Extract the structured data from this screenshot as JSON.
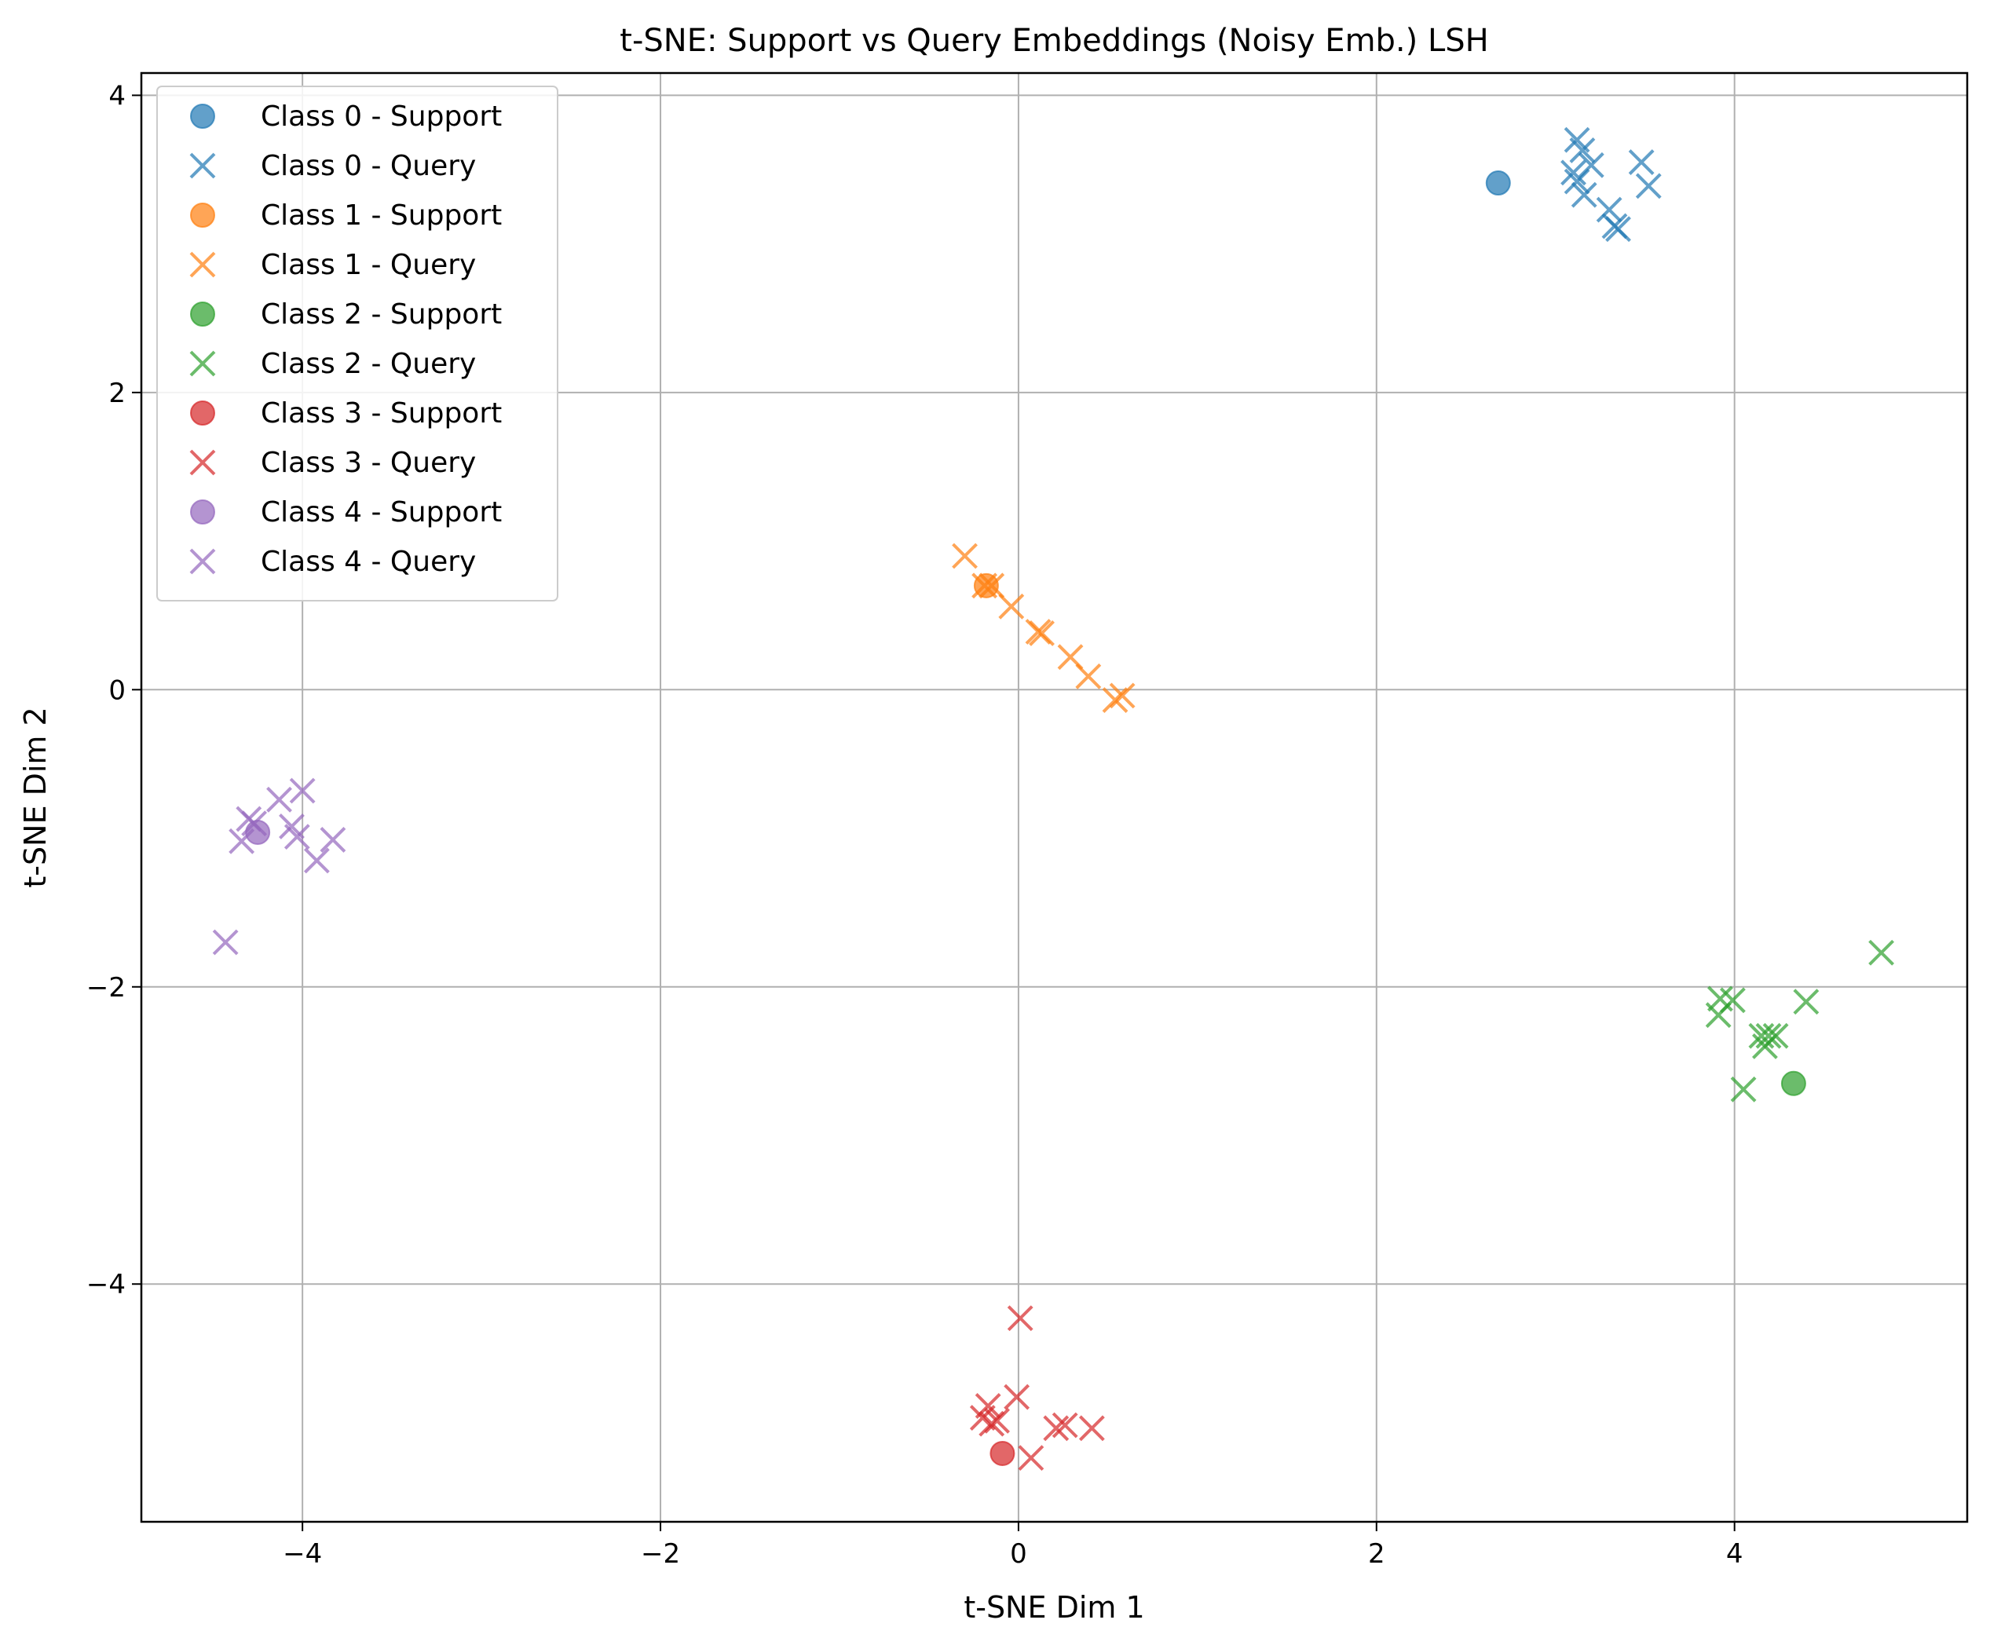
{
  "chart_data": {
    "type": "scatter",
    "title": "t-SNE: Support vs Query Embeddings (Noisy Emb.) LSH",
    "xlabel": "t-SNE Dim 1",
    "ylabel": "t-SNE Dim 2",
    "xlim": [
      -4.9,
      5.3
    ],
    "ylim": [
      -5.6,
      4.15
    ],
    "xticks": [
      -4,
      -2,
      0,
      2,
      4
    ],
    "yticks": [
      -4,
      -2,
      0,
      2,
      4
    ],
    "xtick_labels": [
      "−4",
      "−2",
      "0",
      "2",
      "4"
    ],
    "ytick_labels": [
      "−4",
      "−2",
      "0",
      "2",
      "4"
    ],
    "grid": true,
    "legend_position": "top-left",
    "series": [
      {
        "name": "Class 0 - Support",
        "marker": "circle",
        "color": "#1f77b4",
        "points": [
          [
            2.68,
            3.41
          ]
        ]
      },
      {
        "name": "Class 0 - Query",
        "marker": "x",
        "color": "#1f77b4",
        "points": [
          [
            3.12,
            3.7
          ],
          [
            3.15,
            3.63
          ],
          [
            3.1,
            3.48
          ],
          [
            3.12,
            3.42
          ],
          [
            3.2,
            3.53
          ],
          [
            3.16,
            3.33
          ],
          [
            3.3,
            3.23
          ],
          [
            3.33,
            3.12
          ],
          [
            3.35,
            3.1
          ],
          [
            3.48,
            3.55
          ],
          [
            3.52,
            3.39
          ]
        ]
      },
      {
        "name": "Class 1 - Support",
        "marker": "circle",
        "color": "#ff7f0e",
        "points": [
          [
            -0.18,
            0.7
          ]
        ]
      },
      {
        "name": "Class 1 - Query",
        "marker": "x",
        "color": "#ff7f0e",
        "points": [
          [
            -0.3,
            0.9
          ],
          [
            -0.19,
            0.7
          ],
          [
            -0.15,
            0.7
          ],
          [
            -0.04,
            0.56
          ],
          [
            0.11,
            0.39
          ],
          [
            0.13,
            0.38
          ],
          [
            0.29,
            0.22
          ],
          [
            0.39,
            0.09
          ],
          [
            0.54,
            -0.07
          ],
          [
            0.58,
            -0.04
          ]
        ]
      },
      {
        "name": "Class 2 - Support",
        "marker": "circle",
        "color": "#2ca02c",
        "points": [
          [
            4.33,
            -2.65
          ]
        ]
      },
      {
        "name": "Class 2 - Query",
        "marker": "x",
        "color": "#2ca02c",
        "points": [
          [
            4.82,
            -1.77
          ],
          [
            3.92,
            -2.08
          ],
          [
            3.99,
            -2.09
          ],
          [
            3.91,
            -2.19
          ],
          [
            4.4,
            -2.1
          ],
          [
            4.15,
            -2.33
          ],
          [
            4.19,
            -2.33
          ],
          [
            4.23,
            -2.33
          ],
          [
            4.17,
            -2.4
          ],
          [
            4.05,
            -2.69
          ]
        ]
      },
      {
        "name": "Class 3 - Support",
        "marker": "circle",
        "color": "#d62728",
        "points": [
          [
            -0.09,
            -5.14
          ]
        ]
      },
      {
        "name": "Class 3 - Query",
        "marker": "x",
        "color": "#d62728",
        "points": [
          [
            0.01,
            -4.23
          ],
          [
            -0.01,
            -4.76
          ],
          [
            -0.17,
            -4.82
          ],
          [
            -0.2,
            -4.9
          ],
          [
            -0.15,
            -4.94
          ],
          [
            -0.12,
            -4.92
          ],
          [
            0.21,
            -4.97
          ],
          [
            0.26,
            -4.95
          ],
          [
            0.41,
            -4.97
          ],
          [
            0.07,
            -5.17
          ]
        ]
      },
      {
        "name": "Class 4 - Support",
        "marker": "circle",
        "color": "#9467bd",
        "points": [
          [
            -4.25,
            -0.96
          ]
        ]
      },
      {
        "name": "Class 4 - Query",
        "marker": "x",
        "color": "#9467bd",
        "points": [
          [
            -4.0,
            -0.68
          ],
          [
            -4.13,
            -0.74
          ],
          [
            -4.3,
            -0.87
          ],
          [
            -4.27,
            -0.9
          ],
          [
            -4.06,
            -0.92
          ],
          [
            -4.03,
            -0.99
          ],
          [
            -4.34,
            -1.02
          ],
          [
            -3.83,
            -1.01
          ],
          [
            -3.92,
            -1.15
          ],
          [
            -4.43,
            -1.7
          ]
        ]
      }
    ]
  }
}
